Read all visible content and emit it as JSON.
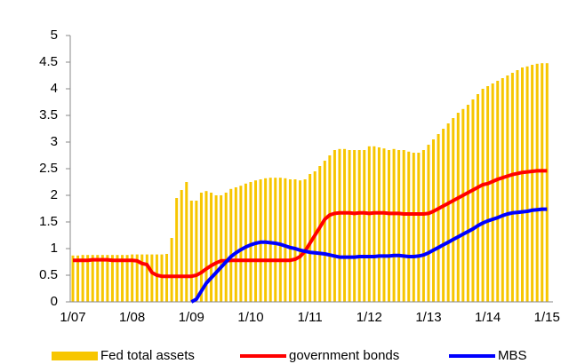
{
  "chart_data": {
    "type": "bar_line",
    "categories": [
      "1/07",
      null,
      null,
      null,
      null,
      null,
      null,
      null,
      null,
      null,
      null,
      null,
      "1/08",
      null,
      null,
      null,
      null,
      null,
      null,
      null,
      null,
      null,
      null,
      null,
      "1/09",
      null,
      null,
      null,
      null,
      null,
      null,
      null,
      null,
      null,
      null,
      null,
      "1/10",
      null,
      null,
      null,
      null,
      null,
      null,
      null,
      null,
      null,
      null,
      null,
      "1/11",
      null,
      null,
      null,
      null,
      null,
      null,
      null,
      null,
      null,
      null,
      null,
      "1/12",
      null,
      null,
      null,
      null,
      null,
      null,
      null,
      null,
      null,
      null,
      null,
      "1/13",
      null,
      null,
      null,
      null,
      null,
      null,
      null,
      null,
      null,
      null,
      null,
      "1/14",
      null,
      null,
      null,
      null,
      null,
      null,
      null,
      null,
      null,
      null,
      null,
      "1/15"
    ],
    "series": [
      {
        "name": "Fed total assets",
        "kind": "bar",
        "color": "#f7c600",
        "values": [
          0.87,
          0.87,
          0.88,
          0.88,
          0.88,
          0.88,
          0.88,
          0.88,
          0.88,
          0.88,
          0.88,
          0.88,
          0.89,
          0.89,
          0.89,
          0.89,
          0.89,
          0.89,
          0.89,
          0.9,
          1.2,
          1.95,
          2.1,
          2.25,
          1.9,
          1.9,
          2.05,
          2.08,
          2.05,
          2.0,
          2.0,
          2.05,
          2.12,
          2.15,
          2.18,
          2.22,
          2.25,
          2.28,
          2.3,
          2.32,
          2.33,
          2.33,
          2.33,
          2.32,
          2.3,
          2.3,
          2.28,
          2.3,
          2.4,
          2.45,
          2.55,
          2.65,
          2.75,
          2.85,
          2.87,
          2.87,
          2.85,
          2.85,
          2.85,
          2.85,
          2.92,
          2.92,
          2.9,
          2.88,
          2.85,
          2.87,
          2.85,
          2.85,
          2.82,
          2.8,
          2.8,
          2.85,
          2.95,
          3.05,
          3.15,
          3.25,
          3.35,
          3.45,
          3.55,
          3.62,
          3.7,
          3.8,
          3.9,
          4.0,
          4.05,
          4.1,
          4.15,
          4.2,
          4.25,
          4.3,
          4.35,
          4.4,
          4.42,
          4.45,
          4.47,
          4.48,
          4.48
        ]
      },
      {
        "name": "government bonds",
        "kind": "line",
        "color": "#ff0000",
        "values": [
          0.78,
          0.78,
          0.78,
          0.78,
          0.79,
          0.79,
          0.79,
          0.79,
          0.78,
          0.78,
          0.78,
          0.78,
          0.78,
          0.77,
          0.72,
          0.7,
          0.55,
          0.5,
          0.48,
          0.48,
          0.48,
          0.48,
          0.48,
          0.48,
          0.48,
          0.5,
          0.55,
          0.62,
          0.68,
          0.73,
          0.77,
          0.77,
          0.78,
          0.78,
          0.78,
          0.78,
          0.78,
          0.78,
          0.78,
          0.78,
          0.78,
          0.78,
          0.78,
          0.78,
          0.78,
          0.8,
          0.85,
          0.95,
          1.1,
          1.25,
          1.4,
          1.55,
          1.63,
          1.66,
          1.67,
          1.67,
          1.67,
          1.66,
          1.67,
          1.67,
          1.66,
          1.67,
          1.67,
          1.67,
          1.66,
          1.66,
          1.66,
          1.65,
          1.65,
          1.65,
          1.65,
          1.65,
          1.66,
          1.7,
          1.75,
          1.8,
          1.85,
          1.9,
          1.95,
          2.0,
          2.05,
          2.1,
          2.15,
          2.2,
          2.22,
          2.26,
          2.3,
          2.33,
          2.36,
          2.39,
          2.41,
          2.43,
          2.44,
          2.45,
          2.46,
          2.46,
          2.46
        ]
      },
      {
        "name": "MBS",
        "kind": "line",
        "color": "#0000ff",
        "values": [
          null,
          null,
          null,
          null,
          null,
          null,
          null,
          null,
          null,
          null,
          null,
          null,
          null,
          null,
          null,
          null,
          null,
          null,
          null,
          null,
          null,
          null,
          null,
          null,
          0,
          0.05,
          0.2,
          0.35,
          0.45,
          0.55,
          0.65,
          0.75,
          0.85,
          0.92,
          0.98,
          1.03,
          1.07,
          1.1,
          1.12,
          1.12,
          1.11,
          1.1,
          1.08,
          1.05,
          1.02,
          1.0,
          0.97,
          0.95,
          0.93,
          0.92,
          0.91,
          0.9,
          0.88,
          0.86,
          0.84,
          0.84,
          0.84,
          0.84,
          0.85,
          0.85,
          0.85,
          0.85,
          0.86,
          0.86,
          0.86,
          0.87,
          0.87,
          0.86,
          0.85,
          0.85,
          0.86,
          0.88,
          0.92,
          0.97,
          1.02,
          1.07,
          1.12,
          1.17,
          1.22,
          1.27,
          1.32,
          1.37,
          1.43,
          1.48,
          1.52,
          1.55,
          1.58,
          1.62,
          1.65,
          1.67,
          1.68,
          1.69,
          1.7,
          1.72,
          1.73,
          1.74,
          1.74
        ]
      }
    ],
    "ylim": [
      0,
      5
    ],
    "yticks": [
      0,
      0.5,
      1,
      1.5,
      2,
      2.5,
      3,
      3.5,
      4,
      4.5,
      5
    ],
    "grid": false,
    "legend": "bottom"
  }
}
